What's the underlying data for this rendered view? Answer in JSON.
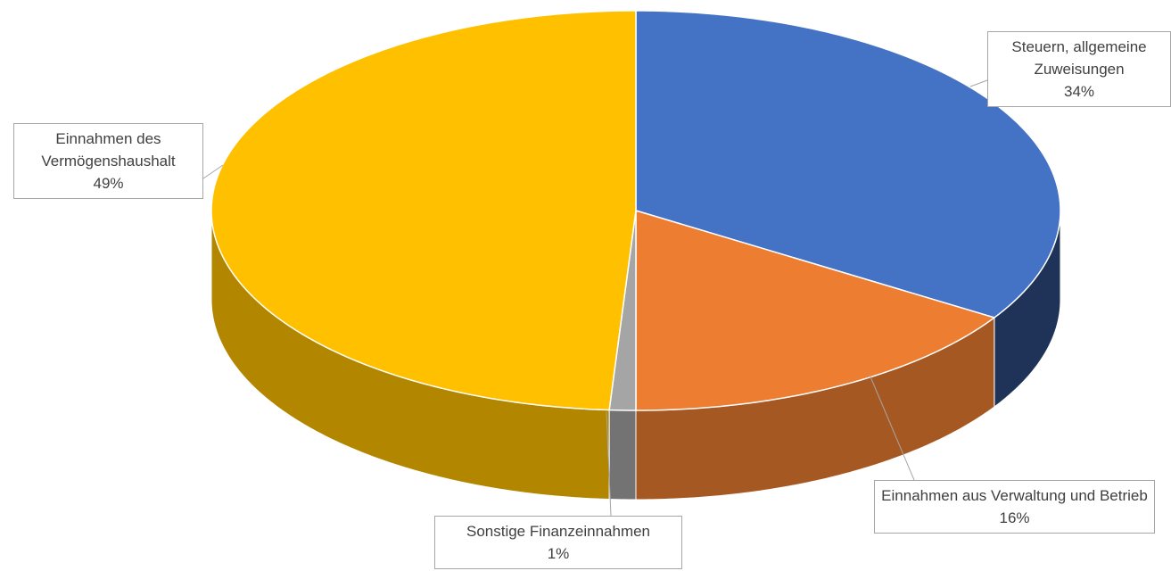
{
  "chart_data": {
    "type": "pie3d",
    "categories": [
      "Steuern, allgemeine Zuweisungen",
      "Einnahmen aus Verwaltung und Betrieb",
      "Sonstige Finanzeinnahmen",
      "Einnahmen des Vermögenshaushalt"
    ],
    "values": [
      34,
      16,
      1,
      49
    ],
    "value_labels": [
      "34%",
      "16%",
      "1%",
      "49%"
    ],
    "colors": [
      "#4472c4",
      "#ed7d31",
      "#a5a5a5",
      "#ffc000"
    ]
  }
}
